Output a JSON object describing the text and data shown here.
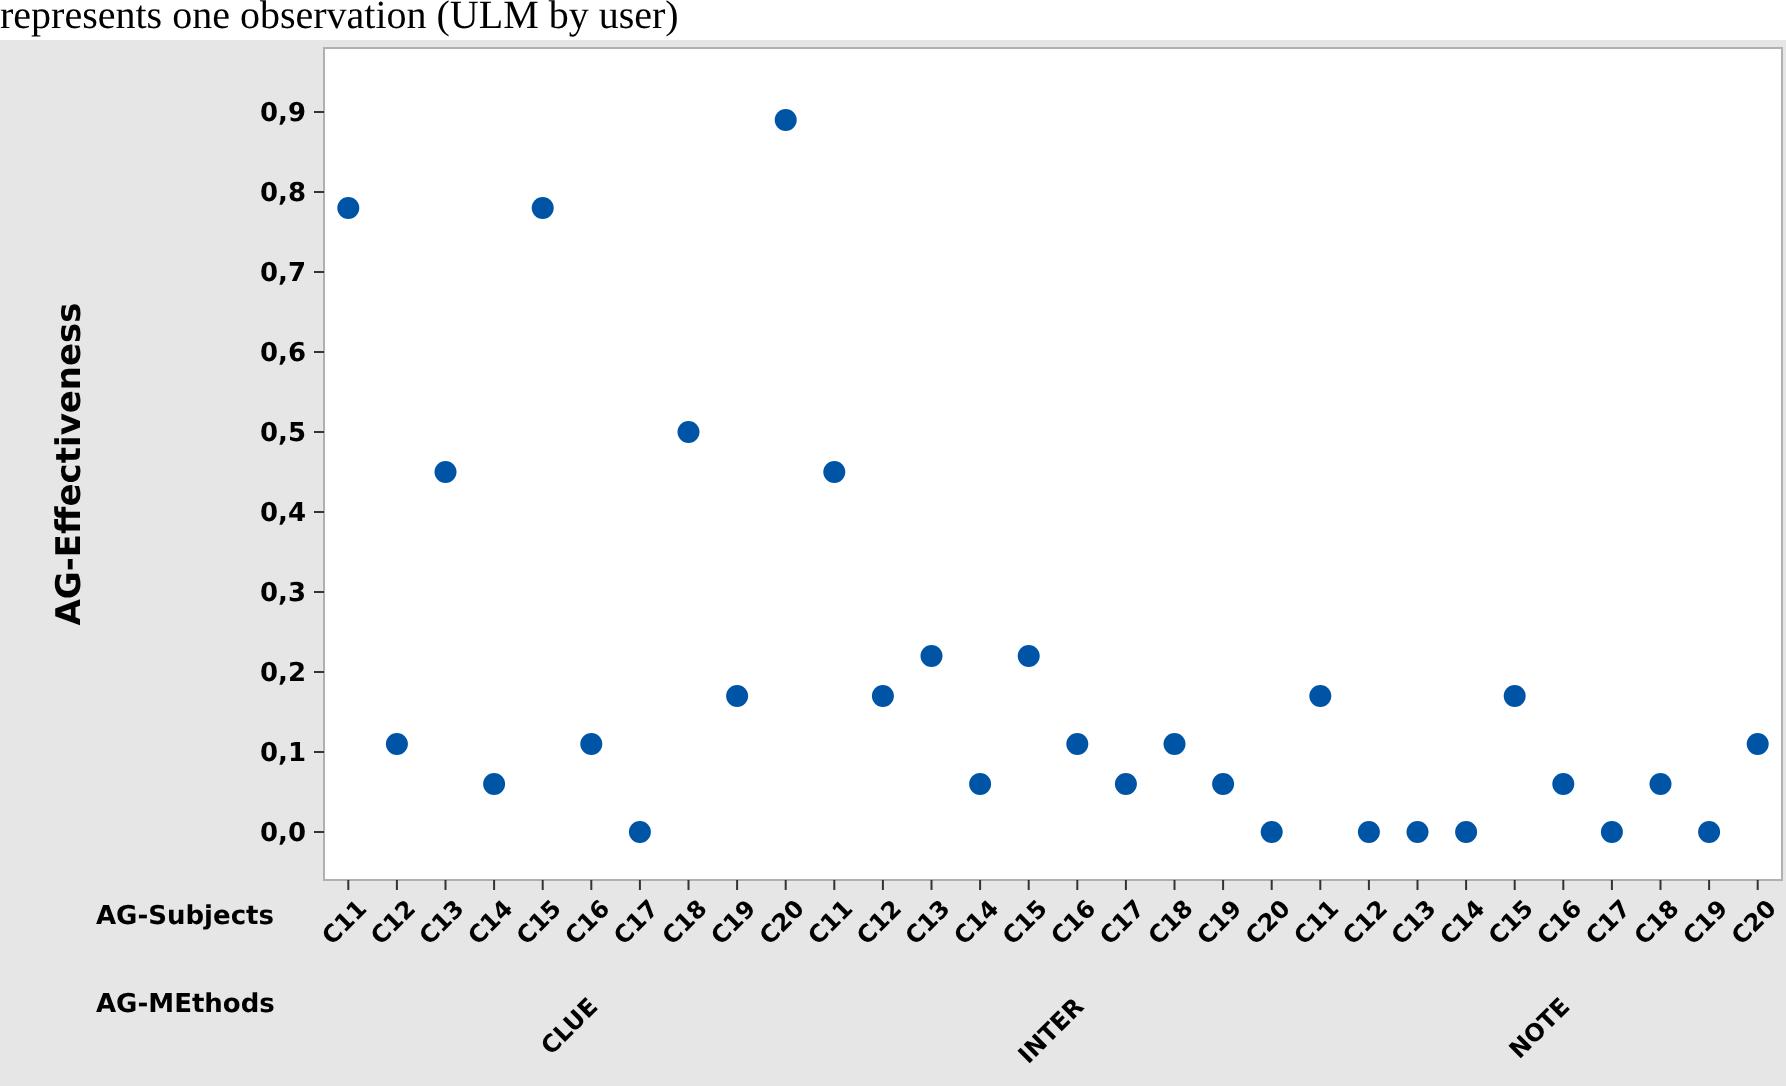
{
  "chart_data": {
    "type": "scatter",
    "ylabel": "AG-Effectiveness",
    "marker": "circle",
    "grid": false,
    "annotations": [
      "represents one observation (ULM by user)",
      "AG-Subjects",
      "AG-MEthods",
      "CLUE",
      "INTER",
      "NOTE"
    ],
    "categories": [
      "C11",
      "C12",
      "C13",
      "C14",
      "C15",
      "C16",
      "C17",
      "C18",
      "C19",
      "C20",
      "C11",
      "C12",
      "C13",
      "C14",
      "C15",
      "C16",
      "C17",
      "C18",
      "C19",
      "C20",
      "C11",
      "C12",
      "C13",
      "C14",
      "C15",
      "C16",
      "C17",
      "C18",
      "C19",
      "C20"
    ],
    "series": [
      {
        "color": "#0054a6",
        "values": [
          0.78,
          0.11,
          0.45,
          0.06,
          0.78,
          0.11,
          0,
          0.5,
          0.17,
          0.89,
          0.45,
          0.17,
          0.22,
          0.06,
          0.22,
          0.11,
          0.06,
          0.11,
          0.06,
          0,
          0.17,
          0,
          0,
          0,
          0.17,
          0.06,
          0,
          0.06,
          0,
          0.11
        ]
      }
    ],
    "ylim": [
      -0.06,
      0.98
    ],
    "yticks": [
      {
        "value": 0,
        "label": "0,0"
      },
      {
        "value": 0.1,
        "label": "0,1"
      },
      {
        "value": 0.2,
        "label": "0,2"
      },
      {
        "value": 0.3,
        "label": "0,3"
      },
      {
        "value": 0.4,
        "label": "0,4"
      },
      {
        "value": 0.5,
        "label": "0,5"
      },
      {
        "value": 0.6,
        "label": "0,6"
      },
      {
        "value": 0.7,
        "label": "0,7"
      },
      {
        "value": 0.8,
        "label": "0,8"
      },
      {
        "value": 0.9,
        "label": "0,9"
      }
    ]
  }
}
